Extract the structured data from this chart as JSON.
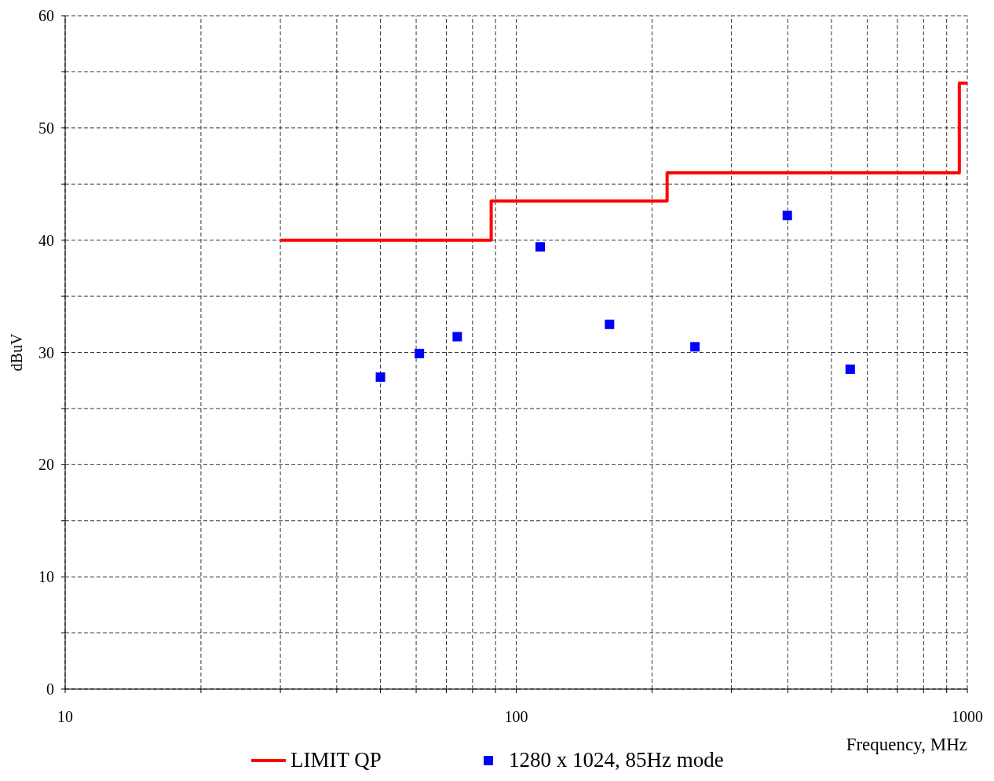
{
  "chart_data": {
    "type": "scatter",
    "xlabel": "Frequency, MHz",
    "ylabel": "dBuV",
    "log": "x",
    "grid": true,
    "legend": "bottom",
    "xlim": [
      10,
      1000
    ],
    "ylim": [
      0,
      60
    ],
    "xticks": [
      10,
      {
        "value": 20,
        "label": null
      },
      {
        "value": 30,
        "label": null
      },
      {
        "value": 40,
        "label": null
      },
      {
        "value": 50,
        "label": null
      },
      {
        "value": 60,
        "label": null
      },
      {
        "value": 70,
        "label": null
      },
      {
        "value": 80,
        "label": null
      },
      {
        "value": 90,
        "label": null
      },
      100,
      {
        "value": 200,
        "label": null
      },
      {
        "value": 300,
        "label": null
      },
      {
        "value": 400,
        "label": null
      },
      {
        "value": 500,
        "label": null
      },
      {
        "value": 600,
        "label": null
      },
      {
        "value": 700,
        "label": null
      },
      {
        "value": 800,
        "label": null
      },
      {
        "value": 900,
        "label": null
      },
      1000
    ],
    "yticks": [
      0,
      {
        "value": 5,
        "label": null
      },
      10,
      {
        "value": 15,
        "label": null
      },
      20,
      {
        "value": 25,
        "label": null
      },
      30,
      {
        "value": 35,
        "label": null
      },
      40,
      {
        "value": 45,
        "label": null
      },
      50,
      {
        "value": 55,
        "label": null
      },
      60
    ],
    "series": [
      {
        "name": "LIMIT QP",
        "type": "step",
        "color": "#ff0000",
        "x": [
          30,
          88,
          216,
          960,
          1000
        ],
        "values": [
          40,
          43.5,
          46,
          54,
          54
        ]
      },
      {
        "name": "1280 x 1024, 85Hz mode",
        "marker": "square",
        "color": "#0000ff",
        "x": [
          50,
          61,
          74,
          113,
          161,
          249,
          399,
          550
        ],
        "values": [
          27.8,
          29.9,
          31.4,
          39.4,
          32.5,
          30.5,
          42.2,
          28.5
        ]
      }
    ]
  }
}
